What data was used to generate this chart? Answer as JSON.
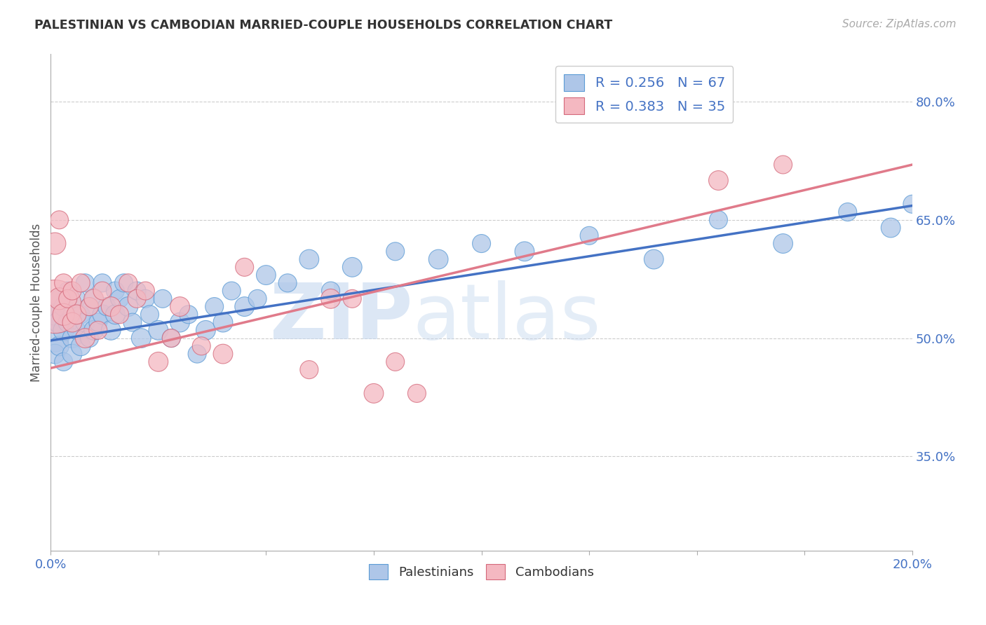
{
  "title": "PALESTINIAN VS CAMBODIAN MARRIED-COUPLE HOUSEHOLDS CORRELATION CHART",
  "source": "Source: ZipAtlas.com",
  "ylabel": "Married-couple Households",
  "xlim": [
    0.0,
    0.2
  ],
  "ylim": [
    0.23,
    0.86
  ],
  "yticks_right": [
    0.35,
    0.5,
    0.65,
    0.8
  ],
  "yticks_right_labels": [
    "35.0%",
    "50.0%",
    "65.0%",
    "80.0%"
  ],
  "watermark_zip": "ZIP",
  "watermark_atlas": "atlas",
  "blue_color": "#aec6e8",
  "blue_edge": "#5b9bd5",
  "pink_color": "#f4b8c1",
  "pink_edge": "#d4687a",
  "line_blue": "#4472c4",
  "line_pink": "#e07a8a",
  "text_color": "#4472c4",
  "palestinians_x": [
    0.001,
    0.001,
    0.001,
    0.002,
    0.002,
    0.002,
    0.003,
    0.003,
    0.003,
    0.004,
    0.004,
    0.005,
    0.005,
    0.005,
    0.006,
    0.006,
    0.007,
    0.007,
    0.008,
    0.008,
    0.009,
    0.009,
    0.01,
    0.01,
    0.011,
    0.012,
    0.012,
    0.013,
    0.014,
    0.015,
    0.015,
    0.016,
    0.017,
    0.018,
    0.019,
    0.02,
    0.021,
    0.022,
    0.023,
    0.025,
    0.026,
    0.028,
    0.03,
    0.032,
    0.034,
    0.036,
    0.038,
    0.04,
    0.042,
    0.045,
    0.048,
    0.05,
    0.055,
    0.06,
    0.065,
    0.07,
    0.08,
    0.09,
    0.1,
    0.11,
    0.125,
    0.14,
    0.155,
    0.17,
    0.185,
    0.195,
    0.2
  ],
  "palestinians_y": [
    0.5,
    0.53,
    0.48,
    0.52,
    0.49,
    0.55,
    0.51,
    0.54,
    0.47,
    0.52,
    0.56,
    0.5,
    0.53,
    0.48,
    0.51,
    0.55,
    0.49,
    0.53,
    0.52,
    0.57,
    0.5,
    0.54,
    0.51,
    0.55,
    0.52,
    0.53,
    0.57,
    0.54,
    0.51,
    0.56,
    0.53,
    0.55,
    0.57,
    0.54,
    0.52,
    0.56,
    0.5,
    0.55,
    0.53,
    0.51,
    0.55,
    0.5,
    0.52,
    0.53,
    0.48,
    0.51,
    0.54,
    0.52,
    0.56,
    0.54,
    0.55,
    0.58,
    0.57,
    0.6,
    0.56,
    0.59,
    0.61,
    0.6,
    0.62,
    0.61,
    0.63,
    0.6,
    0.65,
    0.62,
    0.66,
    0.64,
    0.67
  ],
  "palestinians_size": [
    80,
    50,
    40,
    50,
    40,
    35,
    45,
    40,
    35,
    40,
    35,
    40,
    35,
    40,
    35,
    35,
    40,
    35,
    40,
    35,
    35,
    35,
    40,
    35,
    35,
    40,
    35,
    35,
    40,
    35,
    40,
    35,
    35,
    40,
    35,
    35,
    40,
    35,
    35,
    40,
    35,
    35,
    40,
    35,
    35,
    40,
    35,
    40,
    35,
    40,
    35,
    40,
    35,
    40,
    35,
    40,
    35,
    40,
    35,
    40,
    35,
    40,
    35,
    40,
    35,
    40,
    35
  ],
  "cambodians_x": [
    0.001,
    0.001,
    0.002,
    0.002,
    0.003,
    0.003,
    0.004,
    0.005,
    0.005,
    0.006,
    0.007,
    0.008,
    0.009,
    0.01,
    0.011,
    0.012,
    0.014,
    0.016,
    0.018,
    0.02,
    0.022,
    0.025,
    0.028,
    0.03,
    0.035,
    0.04,
    0.045,
    0.06,
    0.065,
    0.07,
    0.075,
    0.08,
    0.085,
    0.155,
    0.17
  ],
  "cambodians_y": [
    0.54,
    0.62,
    0.55,
    0.65,
    0.53,
    0.57,
    0.55,
    0.52,
    0.56,
    0.53,
    0.57,
    0.5,
    0.54,
    0.55,
    0.51,
    0.56,
    0.54,
    0.53,
    0.57,
    0.55,
    0.56,
    0.47,
    0.5,
    0.54,
    0.49,
    0.48,
    0.59,
    0.46,
    0.55,
    0.55,
    0.43,
    0.47,
    0.43,
    0.7,
    0.72
  ],
  "cambodians_size": [
    300,
    50,
    50,
    35,
    50,
    35,
    35,
    40,
    35,
    40,
    35,
    40,
    35,
    40,
    35,
    35,
    40,
    35,
    35,
    35,
    35,
    40,
    35,
    40,
    35,
    40,
    35,
    35,
    40,
    35,
    40,
    35,
    35,
    40,
    35
  ],
  "blue_line_x0": 0.0,
  "blue_line_y0": 0.497,
  "blue_line_x1": 0.2,
  "blue_line_y1": 0.668,
  "pink_line_x0": 0.0,
  "pink_line_y0": 0.462,
  "pink_line_x1": 0.2,
  "pink_line_y1": 0.72
}
